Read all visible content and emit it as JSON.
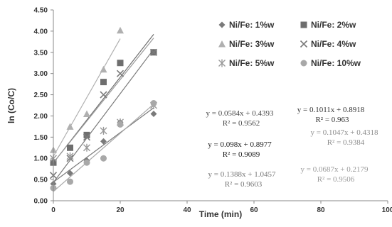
{
  "chart_data": {
    "type": "scatter",
    "xlabel": "Time (min)",
    "ylabel": "ln (Co/C)",
    "xlim": [
      0,
      100
    ],
    "ylim": [
      0,
      4.5
    ],
    "x_ticks": [
      "0",
      "20",
      "40",
      "60",
      "80",
      "100"
    ],
    "y_ticks": [
      "0.00",
      "0.50",
      "1.00",
      "1.50",
      "2.00",
      "2.50",
      "3.00",
      "3.50",
      "4.00",
      "4.50"
    ],
    "grid": false,
    "legend_position": "top-right",
    "series": [
      {
        "name": "Ni/Fe: 1%w",
        "marker": "diamond",
        "color": "#7a7a7a",
        "x": [
          0,
          5,
          10,
          15,
          20,
          30
        ],
        "y": [
          0.4,
          0.65,
          0.95,
          1.4,
          1.85,
          2.05
        ],
        "fit": {
          "slope": 0.0584,
          "intercept": 0.4393
        }
      },
      {
        "name": "Ni/Fe: 2%w",
        "marker": "square",
        "color": "#6e6e6e",
        "x": [
          0,
          5,
          10,
          15,
          20,
          30
        ],
        "y": [
          0.9,
          1.25,
          1.55,
          2.8,
          3.25,
          3.5
        ],
        "fit": {
          "slope": 0.1011,
          "intercept": 0.8918
        }
      },
      {
        "name": "Ni/Fe: 3%w",
        "marker": "triangle",
        "color": "#b0b0b0",
        "x": [
          0,
          5,
          10,
          15,
          20
        ],
        "y": [
          1.2,
          1.75,
          2.05,
          3.1,
          4.02
        ],
        "fit": {
          "slope": 0.1388,
          "intercept": 1.0457
        }
      },
      {
        "name": "Ni/Fe: 4%w",
        "marker": "x",
        "color": "#7a7a7a",
        "x": [
          0,
          5,
          10,
          15,
          20,
          30
        ],
        "y": [
          0.6,
          1.0,
          1.5,
          2.5,
          3.0,
          3.5
        ],
        "fit": {
          "slope": 0.1047,
          "intercept": 0.4318
        }
      },
      {
        "name": "Ni/Fe: 5%w",
        "marker": "star",
        "color": "#9a9a9a",
        "x": [
          0,
          5,
          10,
          15,
          20,
          30
        ],
        "y": [
          1.0,
          1.05,
          1.25,
          1.65,
          1.85,
          2.25
        ],
        "fit": {
          "slope": 0.098,
          "intercept": 0.8977
        }
      },
      {
        "name": "Ni/Fe: 10%w",
        "marker": "circle",
        "color": "#a8a8a8",
        "x": [
          0,
          5,
          10,
          15,
          20,
          30
        ],
        "y": [
          0.3,
          0.45,
          0.9,
          1.0,
          1.8,
          2.3
        ],
        "fit": {
          "slope": 0.0687,
          "intercept": 0.2179
        }
      }
    ],
    "annotations": [
      {
        "text": "y = 0.0584x + 0.4393",
        "r2": "R² = 0.9562",
        "color": "#4a4a4a"
      },
      {
        "text": "y = 0.1011x + 0.8918",
        "r2": "R² = 0.963",
        "color": "#333333"
      },
      {
        "text": "y = 0.098x + 0.8977",
        "r2": "R² = 0.9089",
        "color": "#1a1a1a"
      },
      {
        "text": "y = 0.1047x + 0.4318",
        "r2": "R² = 0.9384",
        "color": "#8c8c8c"
      },
      {
        "text": "y = 0.1388x + 1.0457",
        "r2": "R² = 0.9603",
        "color": "#777777"
      },
      {
        "text": "y = 0.0687x + 0.2179",
        "r2": "R² = 0.9506",
        "color": "#9a9a9a"
      }
    ]
  }
}
